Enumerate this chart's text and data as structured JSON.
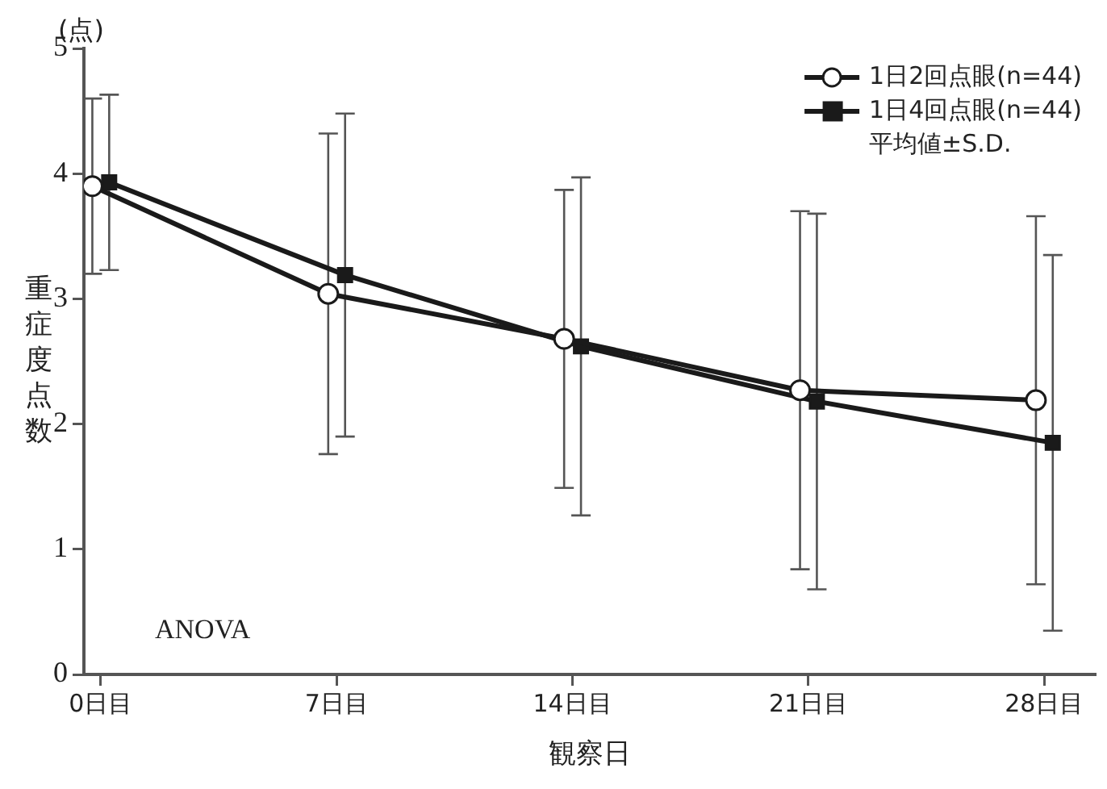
{
  "chart_data": {
    "type": "line",
    "xlabel": "観察日",
    "ylabel": "重症度点数",
    "xlim": [
      -0.5,
      29.5
    ],
    "xticks": [
      {
        "value": 0,
        "label": "0日目"
      },
      {
        "value": 7,
        "label": "7日目"
      },
      {
        "value": 14,
        "label": "14日目"
      },
      {
        "value": 21,
        "label": "21日目"
      },
      {
        "value": 28,
        "label": "28日目"
      }
    ],
    "ylim": [
      0,
      5
    ],
    "yticks": [
      0,
      1,
      2,
      3,
      4,
      5
    ],
    "grid": false,
    "legend": "top right",
    "legend_title": "平均値±S.D.",
    "series": [
      {
        "name": "1日2回点眼(n=44)",
        "color": "#1a1a1a",
        "marker": "circle",
        "x": [
          -0.25,
          6.75,
          13.75,
          20.75,
          27.75
        ],
        "values": [
          3.9,
          3.04,
          2.68,
          2.27,
          2.19
        ],
        "errors": [
          0.7,
          1.28,
          1.19,
          1.43,
          1.47
        ]
      },
      {
        "name": "1日4回点眼(n=44)",
        "color": "#1a1a1a",
        "marker": "square",
        "x": [
          0.25,
          7.25,
          14.25,
          21.25,
          28.25
        ],
        "values": [
          3.93,
          3.19,
          2.62,
          2.18,
          1.85
        ],
        "errors": [
          0.7,
          1.29,
          1.35,
          1.5,
          1.5
        ]
      }
    ],
    "annotations": [
      "(点)",
      "ANOVA"
    ]
  }
}
